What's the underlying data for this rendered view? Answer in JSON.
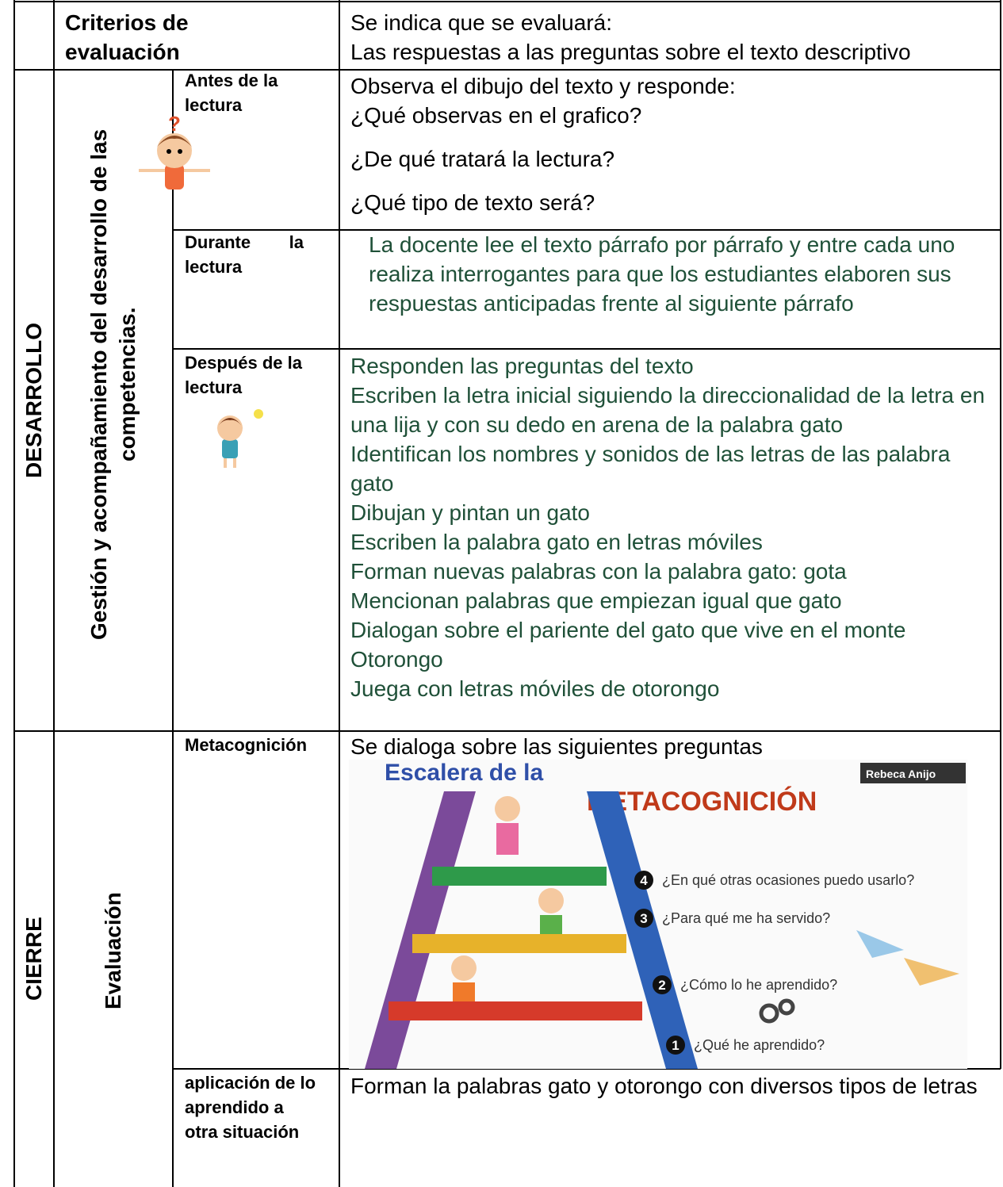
{
  "header": {
    "label": "Criterios de evaluación",
    "lines": [
      "Se indica que se evaluará:",
      "Las respuestas a las preguntas sobre el texto descriptivo"
    ]
  },
  "sections": [
    {
      "name": "DESARROLLO",
      "process": "Gestión y acompañamiento del desarrollo de las competencias.",
      "rows": [
        {
          "moment": "Antes de la lectura",
          "lines": [
            "Observa el dibujo del texto y responde:",
            "¿Qué observas en el grafico?",
            "¿De qué tratará la lectura?",
            "¿Qué tipo de texto será?"
          ]
        },
        {
          "moment": "Durante la lectura",
          "lines": [
            "La docente lee el texto párrafo por párrafo y entre cada uno realiza interrogantes para que los estudiantes elaboren sus respuestas anticipadas frente al siguiente párrafo"
          ]
        },
        {
          "moment": "Después de la lectura",
          "lines": [
            "Responden  las preguntas del texto",
            "Escriben la letra inicial siguiendo la direccionalidad de la letra en una lija y con su dedo en arena  de la palabra gato",
            "Identifican los nombres y sonidos de las letras de las palabra  gato",
            "Dibujan y pintan un gato",
            "Escriben la palabra gato en letras móviles",
            "Forman nuevas palabras con la palabra gato: gota",
            "Mencionan palabras que empiezan igual que gato",
            "Dialogan sobre el pariente del gato que vive en el monte Otorongo",
            "Juega con letras móviles de otorongo"
          ]
        }
      ]
    },
    {
      "name": "CIERRE",
      "process": "Evaluación",
      "rows": [
        {
          "moment": "Metacognición",
          "lines": [
            "Se dialoga sobre las siguientes preguntas"
          ],
          "image": {
            "title": "Escalera de la",
            "subtitle": "METACOGNICIÓN",
            "author": "Rebeca Anijo",
            "steps": [
              {
                "number": 4,
                "text": "¿En qué otras ocasiones puedo usarlo?"
              },
              {
                "number": 3,
                "text": "¿Para qué me ha servido?"
              },
              {
                "number": 2,
                "text": "¿Cómo lo he aprendido?"
              },
              {
                "number": 1,
                "text": "¿Qué he aprendido?"
              }
            ]
          }
        },
        {
          "moment": "aplicación de lo aprendido a otra situación",
          "lines": [
            "Forman la palabras gato y otorongo con diversos tipos de letras"
          ]
        }
      ]
    }
  ]
}
